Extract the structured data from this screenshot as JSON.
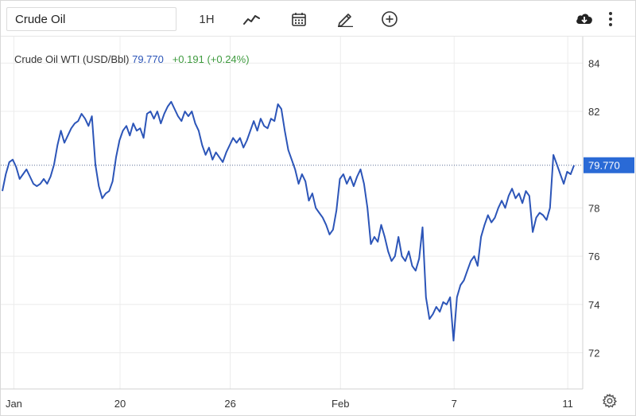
{
  "toolbar": {
    "symbol_value": "Crude Oil",
    "interval_label": "1H",
    "icons": [
      "line-chart-icon",
      "calendar-icon",
      "draw-icon",
      "add-indicator-icon",
      "download-icon",
      "more-icon"
    ]
  },
  "legend": {
    "name": "Crude Oil WTI (USD/Bbl)",
    "price": "79.770",
    "change": "+0.191 (+0.24%)"
  },
  "colors": {
    "line": "#2c55b8",
    "price_label_bg": "#2a6ad6",
    "change_positive": "#3f9b3f",
    "grid": "#ececec"
  },
  "settings_icon": "gear-icon",
  "chart_data": {
    "type": "line",
    "title": "",
    "xlabel": "",
    "ylabel": "",
    "y_axis_position": "right",
    "grid": true,
    "ylim": [
      70.5,
      85.1
    ],
    "yticks": [
      72,
      74,
      76,
      78,
      82,
      84
    ],
    "xlim": [
      0,
      100
    ],
    "xticks": [
      {
        "label": "Jan",
        "x": 2
      },
      {
        "label": "20",
        "x": 20.5
      },
      {
        "label": "26",
        "x": 39.7
      },
      {
        "label": "Feb",
        "x": 58.9
      },
      {
        "label": "7",
        "x": 78.7
      },
      {
        "label": "11",
        "x": 98.5
      }
    ],
    "last_price_label": "79.770",
    "last_price_value": 79.77,
    "series": [
      {
        "name": "Crude Oil WTI (USD/Bbl)",
        "points": [
          [
            0,
            78.7
          ],
          [
            0.6,
            79.4
          ],
          [
            1.2,
            79.9
          ],
          [
            1.8,
            80.0
          ],
          [
            2.4,
            79.7
          ],
          [
            3.0,
            79.2
          ],
          [
            3.6,
            79.4
          ],
          [
            4.2,
            79.6
          ],
          [
            4.8,
            79.3
          ],
          [
            5.4,
            79.0
          ],
          [
            6.0,
            78.9
          ],
          [
            6.6,
            79.0
          ],
          [
            7.2,
            79.2
          ],
          [
            7.8,
            79.0
          ],
          [
            8.4,
            79.3
          ],
          [
            9.0,
            79.8
          ],
          [
            9.6,
            80.6
          ],
          [
            10.2,
            81.2
          ],
          [
            10.8,
            80.7
          ],
          [
            11.4,
            81.0
          ],
          [
            12.0,
            81.3
          ],
          [
            12.6,
            81.5
          ],
          [
            13.2,
            81.6
          ],
          [
            13.8,
            81.9
          ],
          [
            14.4,
            81.7
          ],
          [
            15.0,
            81.4
          ],
          [
            15.6,
            81.8
          ],
          [
            16.2,
            79.8
          ],
          [
            16.8,
            78.9
          ],
          [
            17.4,
            78.4
          ],
          [
            18.0,
            78.6
          ],
          [
            18.6,
            78.7
          ],
          [
            19.2,
            79.1
          ],
          [
            19.8,
            80.1
          ],
          [
            20.4,
            80.8
          ],
          [
            21.0,
            81.2
          ],
          [
            21.6,
            81.4
          ],
          [
            22.2,
            81.0
          ],
          [
            22.8,
            81.5
          ],
          [
            23.4,
            81.2
          ],
          [
            24.0,
            81.3
          ],
          [
            24.6,
            80.9
          ],
          [
            25.2,
            81.9
          ],
          [
            25.8,
            82.0
          ],
          [
            26.4,
            81.7
          ],
          [
            27.0,
            82.0
          ],
          [
            27.6,
            81.5
          ],
          [
            28.2,
            81.9
          ],
          [
            28.8,
            82.2
          ],
          [
            29.4,
            82.4
          ],
          [
            30.0,
            82.1
          ],
          [
            30.6,
            81.8
          ],
          [
            31.2,
            81.6
          ],
          [
            31.8,
            82.0
          ],
          [
            32.4,
            81.8
          ],
          [
            33.0,
            82.0
          ],
          [
            33.6,
            81.5
          ],
          [
            34.2,
            81.2
          ],
          [
            34.8,
            80.6
          ],
          [
            35.4,
            80.2
          ],
          [
            36.0,
            80.5
          ],
          [
            36.6,
            80.0
          ],
          [
            37.2,
            80.3
          ],
          [
            37.8,
            80.1
          ],
          [
            38.4,
            79.9
          ],
          [
            39.0,
            80.3
          ],
          [
            39.6,
            80.6
          ],
          [
            40.2,
            80.9
          ],
          [
            40.8,
            80.7
          ],
          [
            41.4,
            80.9
          ],
          [
            42.0,
            80.5
          ],
          [
            42.6,
            80.8
          ],
          [
            43.2,
            81.2
          ],
          [
            43.8,
            81.6
          ],
          [
            44.4,
            81.2
          ],
          [
            45.0,
            81.7
          ],
          [
            45.6,
            81.4
          ],
          [
            46.2,
            81.3
          ],
          [
            46.8,
            81.7
          ],
          [
            47.4,
            81.6
          ],
          [
            48.0,
            82.3
          ],
          [
            48.6,
            82.1
          ],
          [
            49.2,
            81.2
          ],
          [
            49.8,
            80.4
          ],
          [
            50.4,
            80.0
          ],
          [
            51.0,
            79.6
          ],
          [
            51.6,
            79.0
          ],
          [
            52.2,
            79.4
          ],
          [
            52.8,
            79.1
          ],
          [
            53.4,
            78.3
          ],
          [
            54.0,
            78.6
          ],
          [
            54.6,
            78.0
          ],
          [
            55.2,
            77.8
          ],
          [
            55.8,
            77.6
          ],
          [
            56.4,
            77.3
          ],
          [
            57.0,
            76.9
          ],
          [
            57.6,
            77.1
          ],
          [
            58.2,
            77.9
          ],
          [
            58.8,
            79.2
          ],
          [
            59.4,
            79.4
          ],
          [
            60.0,
            79.0
          ],
          [
            60.6,
            79.3
          ],
          [
            61.2,
            78.9
          ],
          [
            61.8,
            79.3
          ],
          [
            62.4,
            79.6
          ],
          [
            63.0,
            79.0
          ],
          [
            63.6,
            78.0
          ],
          [
            64.2,
            76.5
          ],
          [
            64.8,
            76.8
          ],
          [
            65.4,
            76.6
          ],
          [
            66.0,
            77.3
          ],
          [
            66.6,
            76.8
          ],
          [
            67.2,
            76.2
          ],
          [
            67.8,
            75.8
          ],
          [
            68.4,
            76.0
          ],
          [
            69.0,
            76.8
          ],
          [
            69.6,
            76.0
          ],
          [
            70.2,
            75.8
          ],
          [
            70.8,
            76.2
          ],
          [
            71.4,
            75.6
          ],
          [
            72.0,
            75.4
          ],
          [
            72.6,
            75.9
          ],
          [
            73.2,
            77.2
          ],
          [
            73.8,
            74.3
          ],
          [
            74.4,
            73.4
          ],
          [
            75.0,
            73.6
          ],
          [
            75.6,
            73.9
          ],
          [
            76.2,
            73.7
          ],
          [
            76.8,
            74.1
          ],
          [
            77.4,
            74.0
          ],
          [
            78.0,
            74.3
          ],
          [
            78.6,
            72.5
          ],
          [
            79.2,
            74.3
          ],
          [
            79.8,
            74.8
          ],
          [
            80.4,
            75.0
          ],
          [
            81.0,
            75.4
          ],
          [
            81.6,
            75.8
          ],
          [
            82.2,
            76.0
          ],
          [
            82.8,
            75.6
          ],
          [
            83.4,
            76.8
          ],
          [
            84.0,
            77.3
          ],
          [
            84.6,
            77.7
          ],
          [
            85.2,
            77.4
          ],
          [
            85.8,
            77.6
          ],
          [
            86.4,
            78.0
          ],
          [
            87.0,
            78.3
          ],
          [
            87.6,
            78.0
          ],
          [
            88.2,
            78.5
          ],
          [
            88.8,
            78.8
          ],
          [
            89.4,
            78.4
          ],
          [
            90.0,
            78.6
          ],
          [
            90.6,
            78.2
          ],
          [
            91.2,
            78.7
          ],
          [
            91.8,
            78.5
          ],
          [
            92.4,
            77.0
          ],
          [
            93.0,
            77.6
          ],
          [
            93.6,
            77.8
          ],
          [
            94.2,
            77.7
          ],
          [
            94.8,
            77.5
          ],
          [
            95.4,
            78.0
          ],
          [
            96.0,
            80.2
          ],
          [
            96.6,
            79.8
          ],
          [
            97.2,
            79.4
          ],
          [
            97.8,
            79.0
          ],
          [
            98.4,
            79.5
          ],
          [
            99.0,
            79.4
          ],
          [
            99.6,
            79.77
          ]
        ]
      }
    ]
  }
}
